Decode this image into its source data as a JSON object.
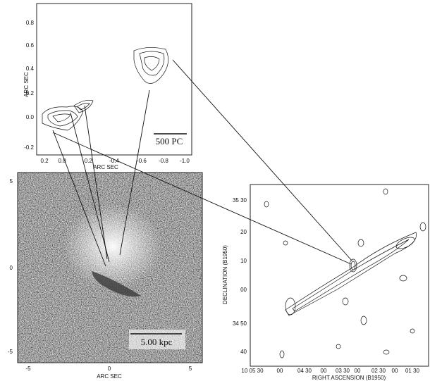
{
  "top_panel": {
    "y_label": "ARC SEC",
    "x_label": "ARC SEC",
    "yticks": [
      "0.8",
      "0.6",
      "0.4",
      "0.2",
      "0.0",
      "-0.2"
    ],
    "xticks": [
      "0.2",
      "0.0",
      "-0.2",
      "-0.4",
      "-0.6",
      "-0.8",
      "-1.0"
    ],
    "scale_bar": "500 PC"
  },
  "image_panel": {
    "x_label": "ARC SEC",
    "yticks": [
      "5",
      "0",
      "-5"
    ],
    "xticks": [
      "-5",
      "0",
      "5"
    ],
    "scale_bar": "5.00 kpc"
  },
  "radio_panel": {
    "y_label": "DECLINATION (B1950)",
    "x_label": "RIGHT ASCENSION (B1950)",
    "yticks": [
      "35 30",
      "20",
      "10",
      "00",
      "34 50",
      "40"
    ],
    "xticks": [
      "10 05 30",
      "00",
      "04 30",
      "00",
      "03 30",
      "00",
      "02 30",
      "00",
      "01 30"
    ]
  }
}
